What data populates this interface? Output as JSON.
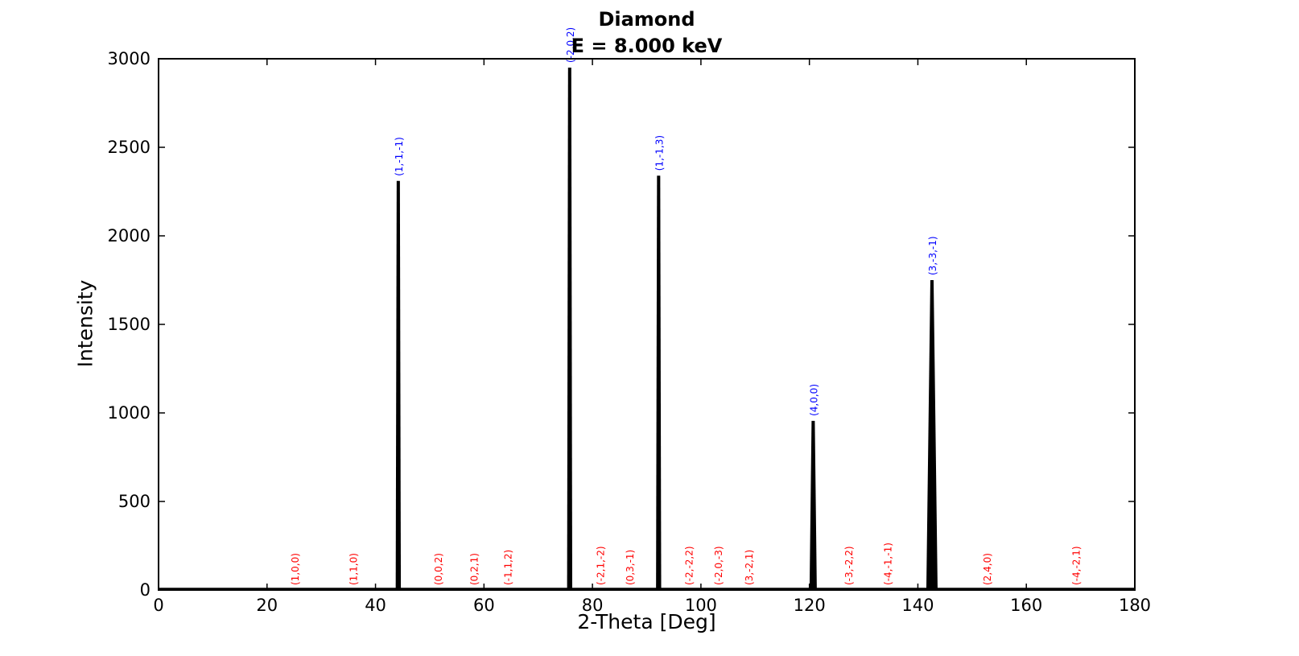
{
  "figure": {
    "title_line1": "Diamond",
    "title_line2": "E = 8.000 keV",
    "xlabel": "2-Theta [Deg]",
    "ylabel": "Intensity"
  },
  "chart_data": {
    "type": "line",
    "subtype": "powder-xrd-pattern",
    "title": "Diamond",
    "subtitle": "E = 8.000 keV",
    "xlabel": "2-Theta [Deg]",
    "ylabel": "Intensity",
    "xlim": [
      0,
      180
    ],
    "ylim": [
      0,
      3000
    ],
    "x_ticks": [
      0,
      20,
      40,
      60,
      80,
      100,
      120,
      140,
      160,
      180
    ],
    "y_ticks": [
      0,
      500,
      1000,
      1500,
      2000,
      2500,
      3000
    ],
    "grid": false,
    "legend": "none",
    "line_color": "#000000",
    "allowed_label_color": "#0000ff",
    "forbidden_label_color": "#ff0000",
    "peaks": [
      {
        "two_theta": 44.2,
        "intensity": 2310,
        "hkl": "(1,-1,-1)"
      },
      {
        "two_theta": 75.8,
        "intensity": 2950,
        "hkl": "(-2,0,2)"
      },
      {
        "two_theta": 92.2,
        "intensity": 2340,
        "hkl": "(1,-1,3)"
      },
      {
        "two_theta": 120.7,
        "intensity": 955,
        "hkl": "(4,0,0)"
      },
      {
        "two_theta": 142.6,
        "intensity": 1750,
        "hkl": "(3,-3,-1)"
      }
    ],
    "forbidden_reflections": [
      {
        "two_theta": 25.1,
        "intensity": 0,
        "hkl": "(1,0,0)"
      },
      {
        "two_theta": 35.8,
        "intensity": 0,
        "hkl": "(1,1,0)"
      },
      {
        "two_theta": 51.5,
        "intensity": 0,
        "hkl": "(0,0,2)"
      },
      {
        "two_theta": 58.1,
        "intensity": 0,
        "hkl": "(0,2,1)"
      },
      {
        "two_theta": 64.3,
        "intensity": 0,
        "hkl": "(-1,1,2)"
      },
      {
        "two_theta": 81.4,
        "intensity": 0,
        "hkl": "(-2,1,-2)"
      },
      {
        "two_theta": 86.8,
        "intensity": 0,
        "hkl": "(0,3,-1)"
      },
      {
        "two_theta": 97.7,
        "intensity": 0,
        "hkl": "(-2,-2,2)"
      },
      {
        "two_theta": 103.1,
        "intensity": 0,
        "hkl": "(-2,0,-3)"
      },
      {
        "two_theta": 108.8,
        "intensity": 0,
        "hkl": "(3,-2,1)"
      },
      {
        "two_theta": 127.2,
        "intensity": 0,
        "hkl": "(-3,-2,2)"
      },
      {
        "two_theta": 134.4,
        "intensity": 0,
        "hkl": "(-4,-1,-1)"
      },
      {
        "two_theta": 152.7,
        "intensity": 0,
        "hkl": "(2,4,0)"
      },
      {
        "two_theta": 169.1,
        "intensity": 0,
        "hkl": "(-4,-2,1)"
      }
    ]
  }
}
